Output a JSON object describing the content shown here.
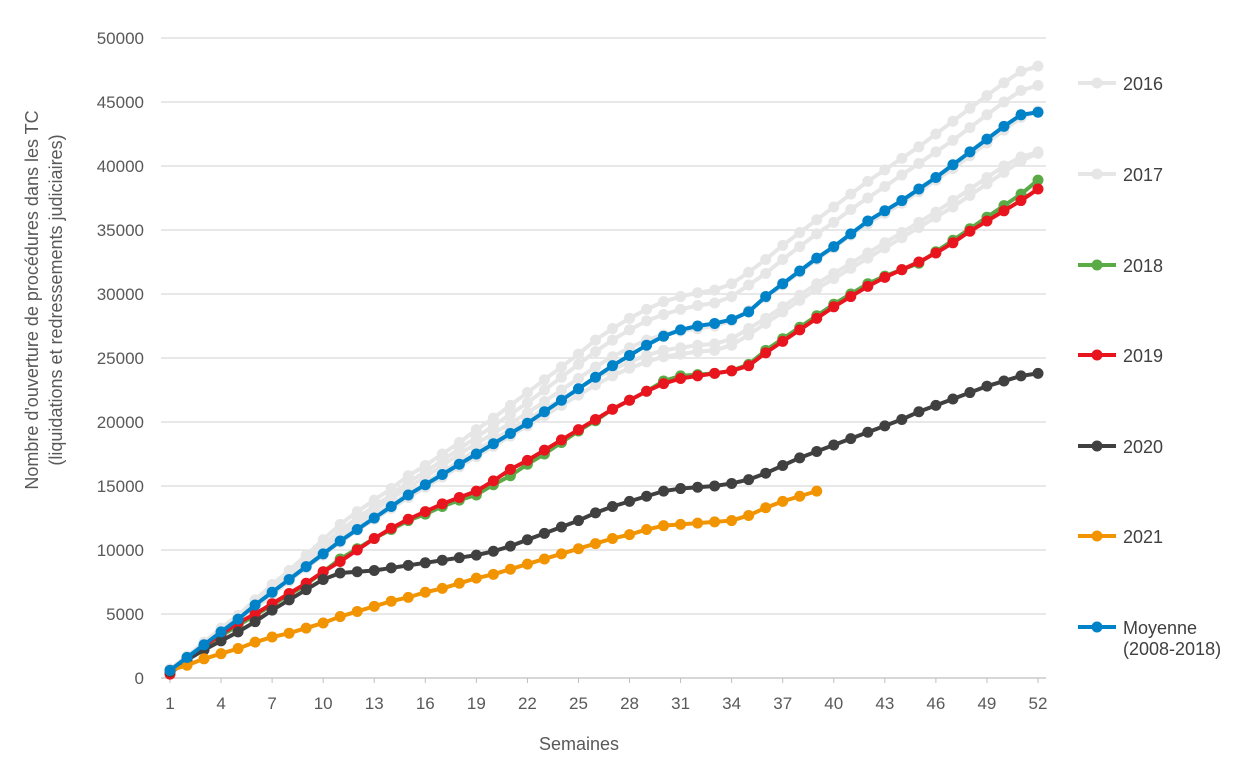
{
  "chart_data": {
    "type": "line",
    "xlabel": "Semaines",
    "ylabel_lines": [
      "Nombre d'ouverture de procédures dans les TC",
      "(liquidations et redressements judiciaires)"
    ],
    "ylim": [
      0,
      50000
    ],
    "yticks": [
      0,
      5000,
      10000,
      15000,
      20000,
      25000,
      30000,
      35000,
      40000,
      45000,
      50000
    ],
    "xlim": [
      1,
      52
    ],
    "xticks": [
      1,
      4,
      7,
      10,
      13,
      16,
      19,
      22,
      25,
      28,
      31,
      34,
      37,
      40,
      43,
      46,
      49,
      52
    ],
    "grid": "horizontal",
    "legend_position": "right",
    "background_years": [
      {
        "values": [
          700,
          1700,
          2800,
          3900,
          4900,
          6100,
          7300,
          8400,
          9600,
          10800,
          12000,
          13000,
          13900,
          14800,
          15800,
          16600,
          17500,
          18400,
          19400,
          20300,
          21300,
          22300,
          23300,
          24300,
          25300,
          26400,
          27300,
          28100,
          28800,
          29400,
          29800,
          30100,
          30300,
          30800,
          31700,
          32700,
          33800,
          34800,
          35800,
          36800,
          37800,
          38800,
          39700,
          40600,
          41500,
          42500,
          43500,
          44500,
          45500,
          46500,
          47400,
          47800
        ]
      },
      {
        "values": [
          650,
          1650,
          2700,
          3800,
          4800,
          6000,
          7100,
          8200,
          9300,
          10400,
          11500,
          12500,
          13400,
          14300,
          15300,
          16100,
          17000,
          17900,
          18800,
          19700,
          20600,
          21500,
          22500,
          23500,
          24500,
          25500,
          26400,
          27200,
          27900,
          28400,
          28800,
          29100,
          29300,
          29800,
          30700,
          31600,
          32700,
          33700,
          34700,
          35600,
          36600,
          37500,
          38400,
          39300,
          40200,
          41100,
          42000,
          43000,
          44000,
          45000,
          45900,
          46300
        ]
      },
      {
        "values": [
          600,
          1600,
          2600,
          3600,
          4600,
          5700,
          6800,
          7900,
          9000,
          10100,
          11200,
          12200,
          13100,
          14000,
          14900,
          15700,
          16600,
          17500,
          18300,
          19100,
          19900,
          20700,
          21600,
          22500,
          23400,
          24300,
          25100,
          25800,
          26400,
          26800,
          27100,
          27300,
          27500,
          27900,
          28700,
          29700,
          30700,
          31700,
          32700,
          33600,
          34600,
          35500,
          36300,
          37100,
          38000,
          38900,
          39800,
          40800,
          41800,
          42800,
          43800,
          44300
        ]
      },
      {
        "values": [
          600,
          1550,
          2550,
          3550,
          4500,
          5550,
          6650,
          7750,
          8800,
          9850,
          10900,
          11850,
          12700,
          13550,
          14450,
          15250,
          16100,
          16950,
          17800,
          18600,
          19400,
          20200,
          21000,
          21800,
          22600,
          23400,
          24100,
          24700,
          25200,
          25600,
          25800,
          26000,
          26100,
          26500,
          27300,
          28100,
          29000,
          29900,
          30800,
          31600,
          32400,
          33200,
          34000,
          34800,
          35600,
          36400,
          37300,
          38200,
          39100,
          40000,
          40700,
          41100
        ]
      },
      {
        "values": [
          550,
          1500,
          2450,
          3450,
          4400,
          5450,
          6500,
          7550,
          8600,
          9600,
          10600,
          11550,
          12400,
          13250,
          14100,
          14900,
          15700,
          16500,
          17300,
          18100,
          18900,
          19700,
          20500,
          21300,
          22100,
          22900,
          23600,
          24200,
          24700,
          25100,
          25300,
          25500,
          25600,
          26000,
          26800,
          27700,
          28600,
          29500,
          30400,
          31200,
          32000,
          32800,
          33600,
          34400,
          35200,
          36000,
          36800,
          37700,
          38600,
          39500,
          40400,
          41000
        ]
      }
    ],
    "series": [
      {
        "name": "2016",
        "color": "#e6e6e6",
        "legend_only": true
      },
      {
        "name": "2017",
        "color": "#e6e6e6",
        "legend_only": true
      },
      {
        "name": "2018",
        "color": "#5aaa46",
        "values": [
          400,
          1600,
          2500,
          3300,
          4100,
          4900,
          5700,
          6500,
          7300,
          8300,
          9300,
          10100,
          10900,
          11600,
          12300,
          12800,
          13400,
          13900,
          14300,
          15100,
          15800,
          16700,
          17500,
          18400,
          19300,
          20100,
          21000,
          21700,
          22400,
          23200,
          23600,
          23700,
          23800,
          24000,
          24500,
          25600,
          26500,
          27400,
          28300,
          29200,
          30000,
          30800,
          31400,
          31900,
          32400,
          33300,
          34200,
          35100,
          36000,
          36900,
          37800,
          38900
        ]
      },
      {
        "name": "2019",
        "color": "#e8151f",
        "values": [
          300,
          1500,
          2500,
          3400,
          4300,
          5000,
          5800,
          6600,
          7400,
          8300,
          9100,
          10000,
          10900,
          11700,
          12400,
          13000,
          13600,
          14100,
          14600,
          15400,
          16300,
          17000,
          17800,
          18600,
          19400,
          20200,
          21000,
          21700,
          22400,
          23000,
          23400,
          23600,
          23800,
          24000,
          24400,
          25400,
          26300,
          27200,
          28100,
          29000,
          29800,
          30600,
          31300,
          31900,
          32500,
          33200,
          34000,
          34900,
          35700,
          36500,
          37300,
          38200
        ]
      },
      {
        "name": "2020",
        "color": "#404040",
        "values": [
          500,
          1400,
          2200,
          2900,
          3600,
          4400,
          5300,
          6100,
          6900,
          7700,
          8200,
          8300,
          8400,
          8600,
          8800,
          9000,
          9200,
          9400,
          9600,
          9900,
          10300,
          10800,
          11300,
          11800,
          12300,
          12900,
          13400,
          13800,
          14200,
          14600,
          14800,
          14900,
          15000,
          15200,
          15500,
          16000,
          16600,
          17200,
          17700,
          18200,
          18700,
          19200,
          19700,
          20200,
          20800,
          21300,
          21800,
          22300,
          22800,
          23200,
          23600,
          23800
        ]
      },
      {
        "name": "2021",
        "color": "#f29400",
        "values": [
          600,
          1000,
          1500,
          1900,
          2300,
          2800,
          3200,
          3500,
          3900,
          4300,
          4800,
          5200,
          5600,
          6000,
          6300,
          6700,
          7000,
          7400,
          7800,
          8100,
          8500,
          8900,
          9300,
          9700,
          10100,
          10500,
          10900,
          11200,
          11600,
          11900,
          12000,
          12100,
          12200,
          12300,
          12700,
          13300,
          13800,
          14200,
          14600
        ]
      },
      {
        "name": "Moyenne (2008-2018)",
        "legend_lines": [
          "Moyenne",
          "(2008-2018)"
        ],
        "color": "#0082c9",
        "values": [
          600,
          1600,
          2600,
          3600,
          4600,
          5700,
          6700,
          7700,
          8700,
          9700,
          10700,
          11600,
          12500,
          13400,
          14300,
          15100,
          15900,
          16700,
          17500,
          18300,
          19100,
          19900,
          20800,
          21700,
          22600,
          23500,
          24400,
          25200,
          26000,
          26700,
          27200,
          27500,
          27700,
          28000,
          28600,
          29800,
          30800,
          31800,
          32800,
          33700,
          34700,
          35700,
          36500,
          37300,
          38200,
          39100,
          40100,
          41100,
          42100,
          43100,
          44000,
          44200
        ]
      }
    ]
  }
}
